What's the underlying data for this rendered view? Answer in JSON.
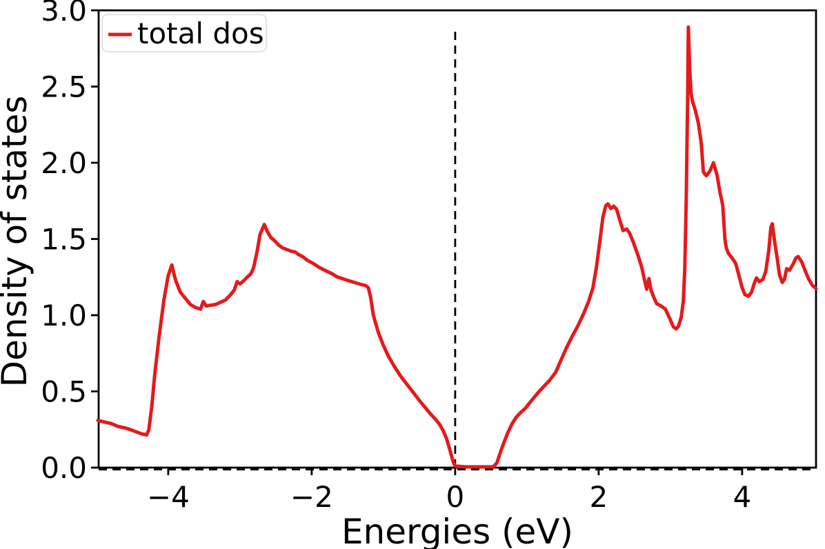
{
  "chart_data": {
    "type": "line",
    "title": "",
    "xlabel": "Energies (eV)",
    "ylabel": "Density of states",
    "background_color": "#ffffff",
    "axes_color": "#000000",
    "grid": false,
    "legend": {
      "position": "upper left",
      "entries": [
        {
          "label": "total dos",
          "color": "#e41a1c"
        }
      ]
    },
    "axes": {
      "xlim": [
        -4.97,
        5.03
      ],
      "ylim": [
        0,
        3.0
      ],
      "xticks": {
        "values": [
          -4,
          -2,
          0,
          2,
          4
        ],
        "labels": [
          "−4",
          "−2",
          "0",
          "2",
          "4"
        ]
      },
      "yticks": {
        "values": [
          0,
          0.5,
          1,
          1.5,
          2,
          2.5,
          3
        ],
        "labels": [
          "0.0",
          "0.5",
          "1.0",
          "1.5",
          "2.0",
          "2.5",
          "3.0"
        ]
      }
    },
    "reference_lines": [
      {
        "name": "fermi-level-line",
        "orientation": "vertical",
        "x": 0,
        "y_from": 0,
        "y_to": 2.89,
        "style": "dashed",
        "color": "#000000"
      },
      {
        "name": "zero-dos-baseline",
        "orientation": "horizontal",
        "y": 0,
        "style": "dashed",
        "color": "#000000"
      }
    ],
    "series": [
      {
        "name": "total dos",
        "color": "#e41a1c",
        "line_width": 5,
        "points": [
          [
            -4.98,
            0.31
          ],
          [
            -4.9,
            0.3
          ],
          [
            -4.8,
            0.29
          ],
          [
            -4.7,
            0.27
          ],
          [
            -4.6,
            0.26
          ],
          [
            -4.5,
            0.245
          ],
          [
            -4.42,
            0.23
          ],
          [
            -4.36,
            0.22
          ],
          [
            -4.3,
            0.215
          ],
          [
            -4.27,
            0.25
          ],
          [
            -4.23,
            0.4
          ],
          [
            -4.19,
            0.6
          ],
          [
            -4.13,
            0.85
          ],
          [
            -4.06,
            1.1
          ],
          [
            -4.0,
            1.26
          ],
          [
            -3.95,
            1.33
          ],
          [
            -3.92,
            1.27
          ],
          [
            -3.89,
            1.22
          ],
          [
            -3.83,
            1.15
          ],
          [
            -3.76,
            1.11
          ],
          [
            -3.69,
            1.07
          ],
          [
            -3.62,
            1.05
          ],
          [
            -3.55,
            1.04
          ],
          [
            -3.51,
            1.09
          ],
          [
            -3.47,
            1.06
          ],
          [
            -3.41,
            1.065
          ],
          [
            -3.34,
            1.07
          ],
          [
            -3.27,
            1.085
          ],
          [
            -3.2,
            1.1
          ],
          [
            -3.13,
            1.135
          ],
          [
            -3.08,
            1.165
          ],
          [
            -3.04,
            1.22
          ],
          [
            -3.0,
            1.205
          ],
          [
            -2.95,
            1.225
          ],
          [
            -2.9,
            1.25
          ],
          [
            -2.85,
            1.27
          ],
          [
            -2.81,
            1.31
          ],
          [
            -2.76,
            1.42
          ],
          [
            -2.72,
            1.53
          ],
          [
            -2.66,
            1.595
          ],
          [
            -2.62,
            1.55
          ],
          [
            -2.57,
            1.51
          ],
          [
            -2.52,
            1.49
          ],
          [
            -2.46,
            1.46
          ],
          [
            -2.4,
            1.44
          ],
          [
            -2.34,
            1.43
          ],
          [
            -2.29,
            1.42
          ],
          [
            -2.23,
            1.415
          ],
          [
            -2.19,
            1.4
          ],
          [
            -2.13,
            1.385
          ],
          [
            -2.06,
            1.36
          ],
          [
            -1.98,
            1.34
          ],
          [
            -1.9,
            1.315
          ],
          [
            -1.82,
            1.295
          ],
          [
            -1.73,
            1.275
          ],
          [
            -1.64,
            1.25
          ],
          [
            -1.57,
            1.24
          ],
          [
            -1.51,
            1.23
          ],
          [
            -1.44,
            1.22
          ],
          [
            -1.37,
            1.21
          ],
          [
            -1.3,
            1.2
          ],
          [
            -1.25,
            1.195
          ],
          [
            -1.21,
            1.18
          ],
          [
            -1.18,
            1.12
          ],
          [
            -1.14,
            1.0
          ],
          [
            -1.11,
            0.95
          ],
          [
            -1.07,
            0.885
          ],
          [
            -1.0,
            0.8
          ],
          [
            -0.93,
            0.73
          ],
          [
            -0.85,
            0.665
          ],
          [
            -0.76,
            0.6
          ],
          [
            -0.67,
            0.545
          ],
          [
            -0.58,
            0.49
          ],
          [
            -0.49,
            0.435
          ],
          [
            -0.41,
            0.39
          ],
          [
            -0.34,
            0.35
          ],
          [
            -0.28,
            0.32
          ],
          [
            -0.22,
            0.285
          ],
          [
            -0.17,
            0.245
          ],
          [
            -0.12,
            0.19
          ],
          [
            -0.07,
            0.11
          ],
          [
            -0.03,
            0.04
          ],
          [
            0.0,
            0.01
          ],
          [
            0.15,
            0.005
          ],
          [
            0.3,
            0.005
          ],
          [
            0.45,
            0.005
          ],
          [
            0.53,
            0.006
          ],
          [
            0.58,
            0.03
          ],
          [
            0.63,
            0.1
          ],
          [
            0.68,
            0.165
          ],
          [
            0.73,
            0.225
          ],
          [
            0.79,
            0.285
          ],
          [
            0.85,
            0.33
          ],
          [
            0.91,
            0.36
          ],
          [
            0.97,
            0.385
          ],
          [
            1.03,
            0.42
          ],
          [
            1.1,
            0.46
          ],
          [
            1.17,
            0.5
          ],
          [
            1.25,
            0.54
          ],
          [
            1.32,
            0.575
          ],
          [
            1.4,
            0.625
          ],
          [
            1.47,
            0.7
          ],
          [
            1.55,
            0.785
          ],
          [
            1.63,
            0.86
          ],
          [
            1.71,
            0.93
          ],
          [
            1.79,
            1.01
          ],
          [
            1.86,
            1.09
          ],
          [
            1.92,
            1.18
          ],
          [
            1.97,
            1.32
          ],
          [
            2.02,
            1.5
          ],
          [
            2.06,
            1.645
          ],
          [
            2.1,
            1.72
          ],
          [
            2.13,
            1.73
          ],
          [
            2.17,
            1.7
          ],
          [
            2.21,
            1.715
          ],
          [
            2.25,
            1.695
          ],
          [
            2.3,
            1.615
          ],
          [
            2.34,
            1.555
          ],
          [
            2.39,
            1.565
          ],
          [
            2.43,
            1.54
          ],
          [
            2.49,
            1.47
          ],
          [
            2.55,
            1.39
          ],
          [
            2.6,
            1.315
          ],
          [
            2.64,
            1.23
          ],
          [
            2.67,
            1.17
          ],
          [
            2.7,
            1.24
          ],
          [
            2.73,
            1.165
          ],
          [
            2.77,
            1.115
          ],
          [
            2.81,
            1.075
          ],
          [
            2.87,
            1.06
          ],
          [
            2.93,
            1.04
          ],
          [
            2.99,
            0.98
          ],
          [
            3.04,
            0.925
          ],
          [
            3.08,
            0.91
          ],
          [
            3.11,
            0.925
          ],
          [
            3.15,
            0.985
          ],
          [
            3.18,
            1.09
          ],
          [
            3.2,
            1.3
          ],
          [
            3.22,
            1.75
          ],
          [
            3.24,
            2.4
          ],
          [
            3.25,
            2.89
          ],
          [
            3.27,
            2.6
          ],
          [
            3.29,
            2.45
          ],
          [
            3.31,
            2.4
          ],
          [
            3.35,
            2.34
          ],
          [
            3.39,
            2.26
          ],
          [
            3.43,
            2.13
          ],
          [
            3.46,
            1.94
          ],
          [
            3.5,
            1.915
          ],
          [
            3.55,
            1.945
          ],
          [
            3.6,
            2.0
          ],
          [
            3.65,
            1.92
          ],
          [
            3.69,
            1.81
          ],
          [
            3.73,
            1.72
          ],
          [
            3.76,
            1.5
          ],
          [
            3.78,
            1.44
          ],
          [
            3.81,
            1.405
          ],
          [
            3.86,
            1.375
          ],
          [
            3.91,
            1.34
          ],
          [
            3.95,
            1.27
          ],
          [
            4.0,
            1.18
          ],
          [
            4.04,
            1.135
          ],
          [
            4.09,
            1.125
          ],
          [
            4.13,
            1.15
          ],
          [
            4.17,
            1.21
          ],
          [
            4.2,
            1.245
          ],
          [
            4.24,
            1.22
          ],
          [
            4.29,
            1.235
          ],
          [
            4.33,
            1.29
          ],
          [
            4.37,
            1.42
          ],
          [
            4.4,
            1.575
          ],
          [
            4.42,
            1.6
          ],
          [
            4.45,
            1.49
          ],
          [
            4.49,
            1.37
          ],
          [
            4.52,
            1.265
          ],
          [
            4.56,
            1.215
          ],
          [
            4.59,
            1.235
          ],
          [
            4.62,
            1.305
          ],
          [
            4.66,
            1.295
          ],
          [
            4.71,
            1.335
          ],
          [
            4.75,
            1.375
          ],
          [
            4.78,
            1.385
          ],
          [
            4.83,
            1.35
          ],
          [
            4.88,
            1.29
          ],
          [
            4.93,
            1.235
          ],
          [
            4.98,
            1.195
          ],
          [
            5.03,
            1.175
          ]
        ]
      }
    ]
  }
}
